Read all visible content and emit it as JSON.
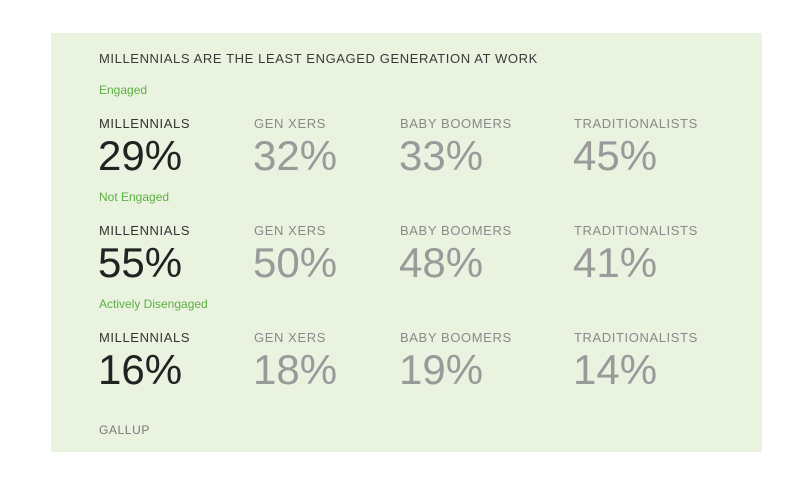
{
  "chart_data": {
    "type": "table",
    "title": "MILLENNIALS ARE THE LEAST ENGAGED GENERATION AT WORK",
    "categories": [
      "MILLENNIALS",
      "GEN XERS",
      "BABY BOOMERS",
      "TRADITIONALISTS"
    ],
    "series": [
      {
        "name": "Engaged",
        "values": [
          "29%",
          "32%",
          "33%",
          "45%"
        ]
      },
      {
        "name": "Not Engaged",
        "values": [
          "55%",
          "50%",
          "48%",
          "41%"
        ]
      },
      {
        "name": "Actively Disengaged",
        "values": [
          "16%",
          "18%",
          "19%",
          "14%"
        ]
      }
    ],
    "source": "GALLUP",
    "colors": {
      "background": "#eaf2e0",
      "section_label": "#5bb043",
      "highlight_value": "#222222",
      "muted_value": "#9a9a9a"
    }
  }
}
